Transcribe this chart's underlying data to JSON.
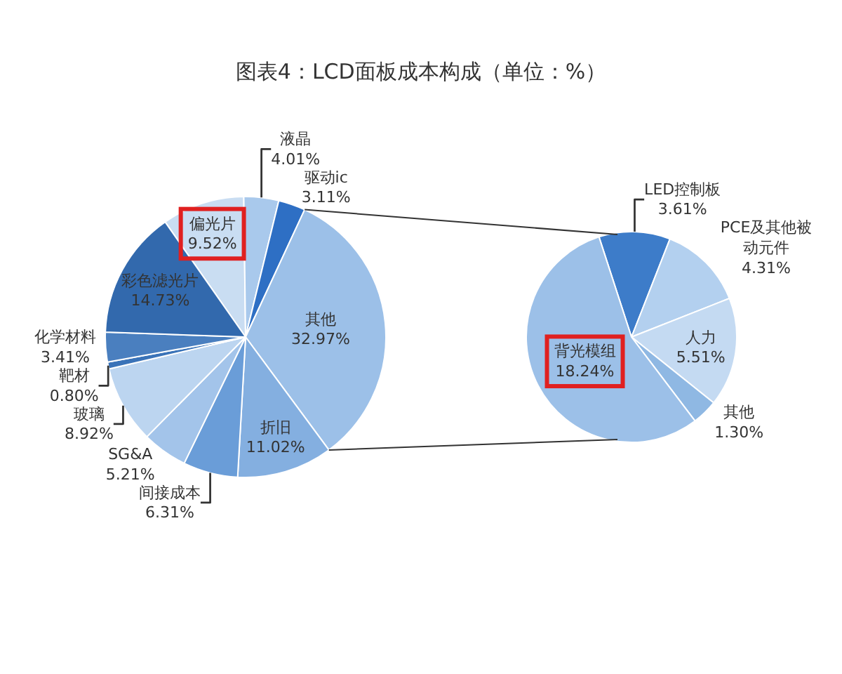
{
  "chart_data": [
    {
      "type": "pie",
      "title": "图表4：LCD面板成本构成（单位：%）",
      "categories": [
        "偏光片",
        "液晶",
        "驱动ic",
        "其他",
        "折旧",
        "间接成本",
        "SG&A",
        "玻璃",
        "靶材",
        "化学材料",
        "彩色滤光片"
      ],
      "values": [
        9.52,
        4.01,
        3.11,
        32.97,
        11.02,
        6.31,
        5.21,
        8.92,
        0.8,
        3.41,
        14.73
      ],
      "value_labels": [
        "9.52%",
        "4.01%",
        "3.11%",
        "32.97%",
        "11.02%",
        "6.31%",
        "5.21%",
        "8.92%",
        "0.80%",
        "3.41%",
        "14.73%"
      ],
      "colors": [
        "#c9ddf2",
        "#a9c9ec",
        "#2e6fc4",
        "#9cc0e8",
        "#84afe0",
        "#6a9dd8",
        "#a3c4ea",
        "#bcd5f0",
        "#3a73b8",
        "#4a7fbf",
        "#3269ad"
      ],
      "legend": false
    },
    {
      "type": "pie",
      "categories": [
        "LED控制板",
        "PCE及其他被动元件",
        "人力",
        "其他",
        "背光模组"
      ],
      "values": [
        3.61,
        4.31,
        5.51,
        1.3,
        18.24
      ],
      "value_labels": [
        "3.61%",
        "4.31%",
        "5.51%",
        "1.30%",
        "18.24%"
      ],
      "colors": [
        "#3d7cc9",
        "#b3d0ef",
        "#c4daf2",
        "#8fb8e3",
        "#9cc0e8"
      ],
      "legend": false
    }
  ]
}
